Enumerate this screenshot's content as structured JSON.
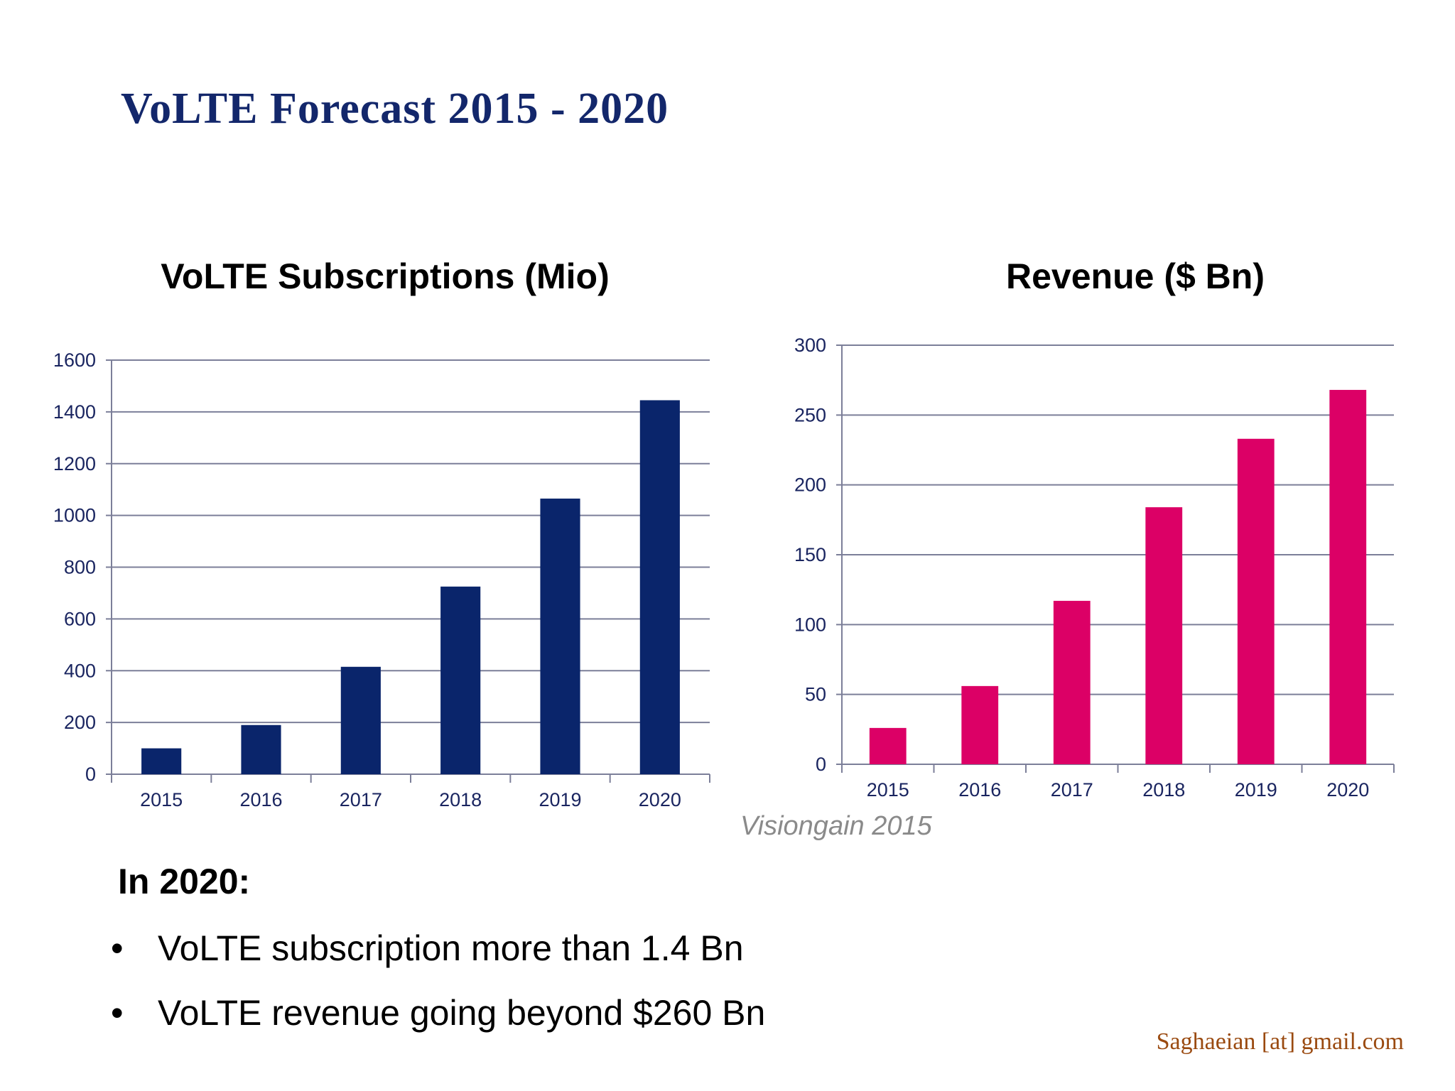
{
  "slide": {
    "title": "VoLTE Forecast 2015 - 2020",
    "source": "Visiongain 2015",
    "summary_heading": "In 2020:",
    "bullets": [
      "VoLTE subscription more than 1.4 Bn",
      "VoLTE revenue going beyond $260 Bn"
    ],
    "bullet_symbol": "•",
    "footer": "Saghaeian [at] gmail.com"
  },
  "chart_data": [
    {
      "type": "bar",
      "title": "VoLTE Subscriptions (Mio)",
      "categories": [
        "2015",
        "2016",
        "2017",
        "2018",
        "2019",
        "2020"
      ],
      "values": [
        100,
        190,
        415,
        725,
        1065,
        1445
      ],
      "yticks": [
        "0",
        "200",
        "400",
        "600",
        "800",
        "1000",
        "1200",
        "1400",
        "1600"
      ],
      "ylim": [
        0,
        1600
      ],
      "grid": true,
      "color": "#0a256b"
    },
    {
      "type": "bar",
      "title": "Revenue ($ Bn)",
      "categories": [
        "2015",
        "2016",
        "2017",
        "2018",
        "2019",
        "2020"
      ],
      "values": [
        26,
        56,
        117,
        184,
        233,
        268
      ],
      "yticks": [
        "0",
        "50",
        "100",
        "150",
        "200",
        "250",
        "300"
      ],
      "ylim": [
        0,
        300
      ],
      "grid": true,
      "color": "#dc0066"
    }
  ]
}
